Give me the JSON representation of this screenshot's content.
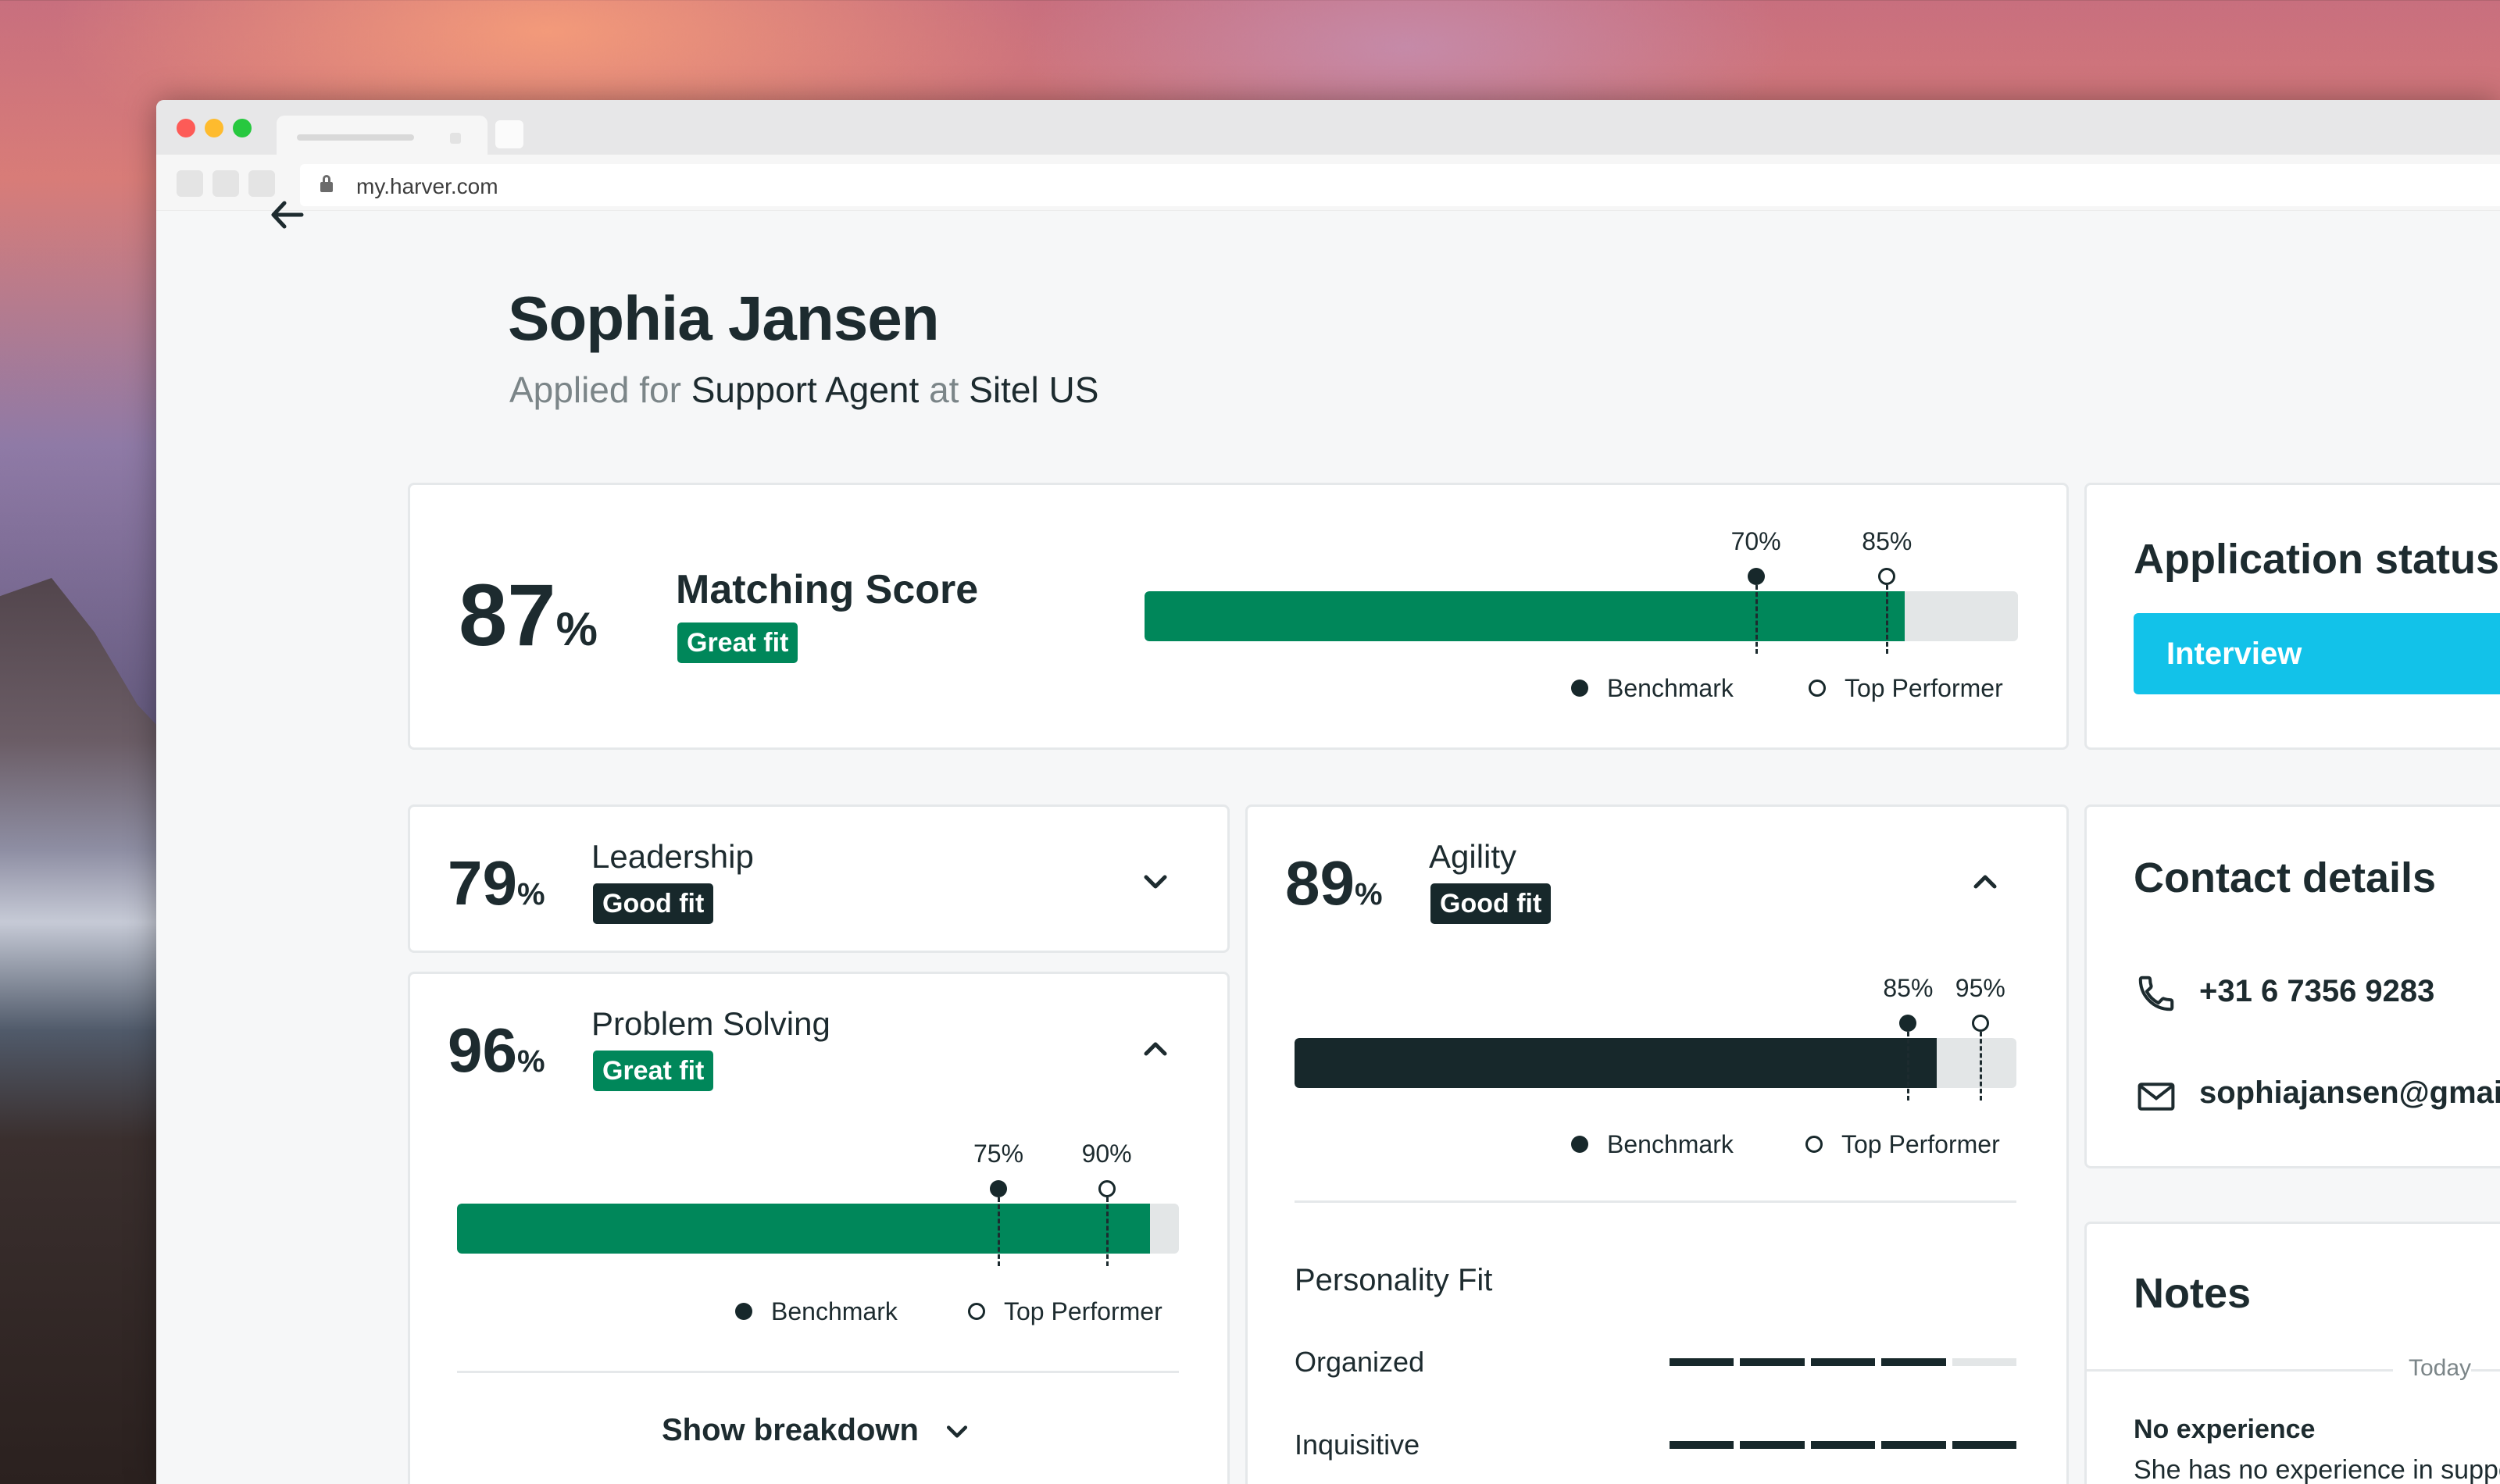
{
  "browser": {
    "url": "my.harver.com"
  },
  "header": {
    "name": "Sophia Jansen",
    "applied_prefix": "Applied for",
    "role": "Support Agent",
    "at": "at",
    "company": "Sitel US"
  },
  "matching": {
    "score": "87",
    "pct": "%",
    "title": "Matching Score",
    "badge": "Great fit",
    "value": 0.87,
    "benchmark_label": "70%",
    "benchmark": 0.7,
    "top_label": "85%",
    "top": 0.85
  },
  "legend": {
    "benchmark": "Benchmark",
    "top": "Top Performer"
  },
  "leadership": {
    "score": "79",
    "pct": "%",
    "title": "Leadership",
    "badge": "Good fit"
  },
  "problem_solving": {
    "score": "96",
    "pct": "%",
    "title": "Problem Solving",
    "badge": "Great fit",
    "value": 0.96,
    "benchmark_label": "75%",
    "benchmark": 0.75,
    "top_label": "90%",
    "top": 0.9,
    "breakdown": "Show breakdown"
  },
  "agility": {
    "score": "89",
    "pct": "%",
    "title": "Agility",
    "badge": "Good fit",
    "value": 0.89,
    "benchmark_label": "85%",
    "benchmark": 0.85,
    "top_label": "95%",
    "top": 0.95,
    "personality_title": "Personality Fit",
    "traits": [
      {
        "label": "Organized",
        "level": 4,
        "max": 5
      },
      {
        "label": "Inquisitive",
        "level": 5,
        "max": 5
      }
    ]
  },
  "status": {
    "title": "Application status",
    "button": "Interview"
  },
  "contact": {
    "title": "Contact details",
    "phone": "+31 6 7356 9283",
    "email": "sophiajansen@gmail.com"
  },
  "notes": {
    "title": "Notes",
    "date": "Today",
    "note_title": "No experience",
    "note_body": "She has no experience in support"
  },
  "colors": {
    "green": "#00875a",
    "dark": "#17282b",
    "cyan": "#12c2e9"
  }
}
